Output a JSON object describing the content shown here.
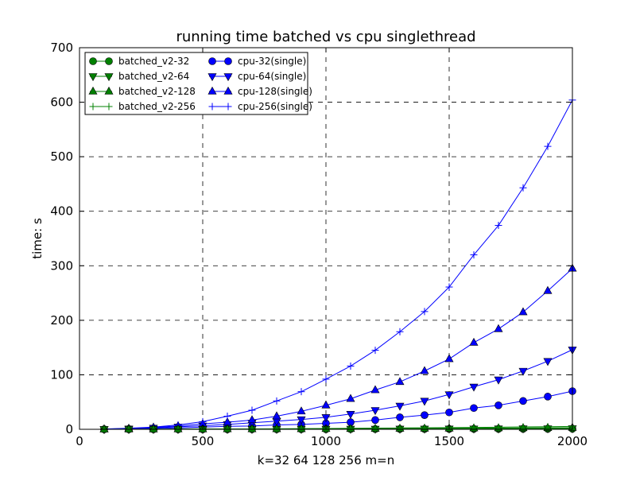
{
  "chart_data": {
    "type": "line",
    "title": "running time batched vs cpu singlethread",
    "xlabel": "k=32 64 128 256  m=n",
    "ylabel": "time: s",
    "xlim": [
      0,
      2000
    ],
    "ylim": [
      0,
      700
    ],
    "xticks": [
      0,
      500,
      1000,
      1500,
      2000
    ],
    "yticks": [
      0,
      100,
      200,
      300,
      400,
      500,
      600,
      700
    ],
    "grid": true,
    "legend": "top-left, two columns",
    "x": [
      100,
      200,
      300,
      400,
      500,
      600,
      700,
      800,
      900,
      1000,
      1100,
      1200,
      1300,
      1400,
      1500,
      1600,
      1700,
      1800,
      1900,
      2000
    ],
    "series": [
      {
        "name": "batched_v2-32",
        "color": "#008000",
        "marker": "circle",
        "values": [
          0,
          0,
          0,
          0,
          0.1,
          0.1,
          0.2,
          0.2,
          0.3,
          0.3,
          0.4,
          0.4,
          0.5,
          0.5,
          0.6,
          0.7,
          0.7,
          0.8,
          0.8,
          0.9
        ]
      },
      {
        "name": "batched_v2-64",
        "color": "#008000",
        "marker": "triangle-down",
        "values": [
          0,
          0,
          0.1,
          0.1,
          0.1,
          0.2,
          0.3,
          0.3,
          0.4,
          0.5,
          0.6,
          0.7,
          0.8,
          0.9,
          1.0,
          1.1,
          1.2,
          1.3,
          1.4,
          1.5
        ]
      },
      {
        "name": "batched_v2-128",
        "color": "#008000",
        "marker": "triangle-up",
        "values": [
          0,
          0.1,
          0.1,
          0.2,
          0.3,
          0.4,
          0.5,
          0.6,
          0.7,
          0.9,
          1.0,
          1.2,
          1.4,
          1.6,
          1.8,
          2.0,
          2.2,
          2.5,
          2.7,
          3.0
        ]
      },
      {
        "name": "batched_v2-256",
        "color": "#008000",
        "marker": "plus",
        "values": [
          0,
          0.1,
          0.2,
          0.3,
          0.5,
          0.6,
          0.8,
          1.0,
          1.3,
          1.5,
          1.8,
          2.1,
          2.4,
          2.8,
          3.1,
          3.5,
          3.9,
          4.3,
          4.8,
          5.2
        ]
      },
      {
        "name": "cpu-32(single)",
        "color": "#0000ff",
        "marker": "circle",
        "values": [
          0.1,
          0.6,
          1.5,
          2.5,
          4,
          5.5,
          6,
          8,
          9,
          11,
          13,
          17,
          22,
          26,
          31,
          39,
          44,
          52,
          60,
          70
        ]
      },
      {
        "name": "cpu-64(single)",
        "color": "#0000ff",
        "marker": "triangle-down",
        "values": [
          0.2,
          1,
          2.5,
          4.5,
          6.5,
          9,
          12,
          15,
          18,
          22,
          28,
          35,
          43,
          52,
          64,
          78,
          91,
          107,
          125,
          146
        ]
      },
      {
        "name": "cpu-128(single)",
        "color": "#0000ff",
        "marker": "triangle-up",
        "values": [
          0.3,
          1.5,
          3.5,
          6,
          10,
          13,
          17,
          24,
          33,
          44,
          56,
          72,
          87,
          107,
          129,
          159,
          184,
          215,
          254,
          295
        ]
      },
      {
        "name": "cpu-256(single)",
        "color": "#0000ff",
        "marker": "plus",
        "values": [
          0.5,
          2,
          4,
          8,
          14,
          24,
          35,
          52,
          69,
          92,
          116,
          145,
          179,
          216,
          261,
          320,
          374,
          443,
          519,
          604
        ]
      }
    ]
  }
}
